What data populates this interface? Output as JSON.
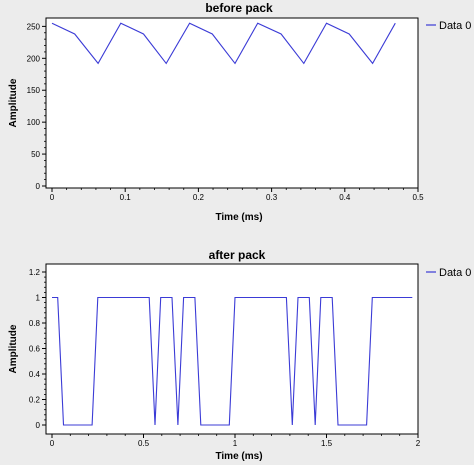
{
  "chart_data": [
    {
      "type": "line",
      "title": "before pack",
      "xlabel": "Time (ms)",
      "ylabel": "Amplitude",
      "xlim": [
        0,
        0.5
      ],
      "ylim": [
        0,
        260
      ],
      "xticks": [
        "0",
        "0.1",
        "0.2",
        "0.3",
        "0.4",
        "0.5"
      ],
      "yticks": [
        "0",
        "50",
        "100",
        "150",
        "200",
        "250"
      ],
      "legend_position": "top-right, outside plot",
      "series": [
        {
          "name": "Data 0",
          "color": "#3b3bd6",
          "x": [
            0,
            0.031,
            0.063,
            0.094,
            0.125,
            0.156,
            0.188,
            0.219,
            0.25,
            0.281,
            0.313,
            0.344,
            0.375,
            0.406,
            0.438,
            0.469
          ],
          "y": [
            255,
            238,
            192,
            255,
            238,
            192,
            255,
            238,
            192,
            255,
            238,
            192,
            255,
            238,
            192,
            255
          ]
        }
      ]
    },
    {
      "type": "line",
      "title": "after pack",
      "xlabel": "Time (ms)",
      "ylabel": "Amplitude",
      "xlim": [
        0,
        2
      ],
      "ylim": [
        0,
        1.2
      ],
      "xticks": [
        "0",
        "0.5",
        "1",
        "1.5",
        "2"
      ],
      "yticks": [
        "0",
        "0.2",
        "0.4",
        "0.6",
        "0.8",
        "1",
        "1.2"
      ],
      "legend_position": "top-right, outside plot",
      "series": [
        {
          "name": "Data 0",
          "color": "#3b3bd6",
          "x": [
            0,
            0.031,
            0.063,
            0.094,
            0.125,
            0.156,
            0.188,
            0.219,
            0.25,
            0.281,
            0.313,
            0.344,
            0.375,
            0.406,
            0.438,
            0.469,
            0.5,
            0.531,
            0.563,
            0.594,
            0.625,
            0.656,
            0.688,
            0.719,
            0.75,
            0.781,
            0.813,
            0.844,
            0.875,
            0.906,
            0.938,
            0.969,
            1.0,
            1.031,
            1.063,
            1.094,
            1.125,
            1.156,
            1.188,
            1.219,
            1.25,
            1.281,
            1.313,
            1.344,
            1.375,
            1.406,
            1.438,
            1.469,
            1.5,
            1.531,
            1.563,
            1.594,
            1.625,
            1.656,
            1.688,
            1.719,
            1.75,
            1.781,
            1.813,
            1.844,
            1.875,
            1.906,
            1.938,
            1.969
          ],
          "y": [
            1,
            1,
            0,
            0,
            0,
            0,
            0,
            0,
            1,
            1,
            1,
            1,
            1,
            1,
            1,
            1,
            1,
            1,
            0,
            1,
            1,
            1,
            0,
            1,
            1,
            1,
            0,
            0,
            0,
            0,
            0,
            0,
            1,
            1,
            1,
            1,
            1,
            1,
            1,
            1,
            1,
            1,
            0,
            1,
            1,
            1,
            0,
            1,
            1,
            1,
            0,
            0,
            0,
            0,
            0,
            0,
            1,
            1,
            1,
            1,
            1,
            1,
            1,
            1
          ]
        }
      ]
    }
  ]
}
